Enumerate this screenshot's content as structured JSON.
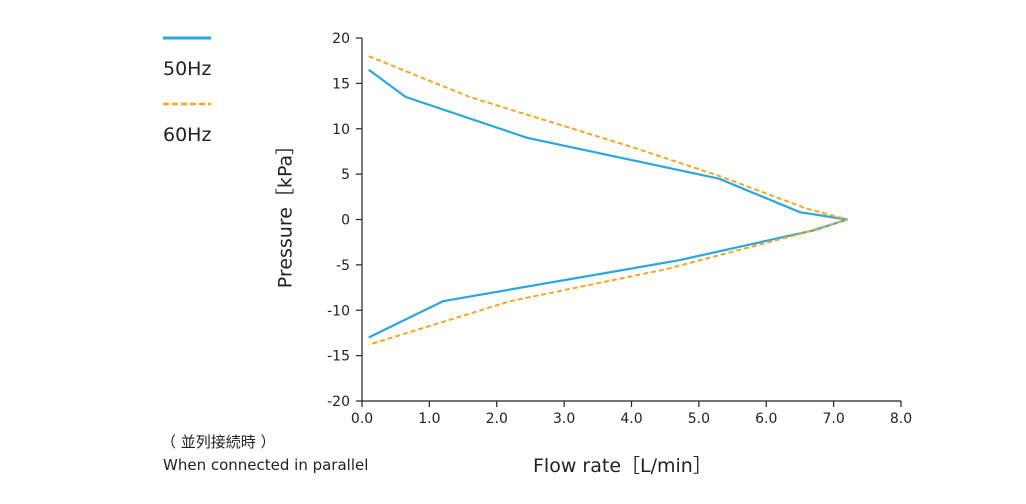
{
  "chart_data": {
    "type": "line",
    "xlabel": "Flow rate［L/min］",
    "ylabel": "Pressure［kPa］",
    "xlim": [
      0,
      8
    ],
    "ylim": [
      -20,
      20
    ],
    "x_ticks": [
      "0.0",
      "1.0",
      "2.0",
      "3.0",
      "4.0",
      "5.0",
      "6.0",
      "7.0",
      "8.0"
    ],
    "y_ticks": [
      "20",
      "15",
      "10",
      "5",
      "0",
      "-5",
      "-10",
      "-15",
      "-20"
    ],
    "x_tick_values": [
      0,
      1,
      2,
      3,
      4,
      5,
      6,
      7,
      8
    ],
    "y_tick_values": [
      20,
      15,
      10,
      5,
      0,
      -5,
      -10,
      -15,
      -20
    ],
    "series": [
      {
        "name": "50Hz",
        "color": "#2aa7e0",
        "style": "solid",
        "upper": [
          [
            0.1,
            16.5
          ],
          [
            0.65,
            13.5
          ],
          [
            2.45,
            9.0
          ],
          [
            5.3,
            4.5
          ],
          [
            6.5,
            0.8
          ],
          [
            7.2,
            0.0
          ]
        ],
        "lower": [
          [
            0.1,
            -13.0
          ],
          [
            1.2,
            -9.0
          ],
          [
            4.7,
            -4.5
          ],
          [
            6.7,
            -1.2
          ],
          [
            7.2,
            0.0
          ]
        ]
      },
      {
        "name": "60Hz",
        "color": "#f5a623",
        "style": "dashed",
        "upper": [
          [
            0.1,
            18.0
          ],
          [
            1.6,
            13.5
          ],
          [
            4.0,
            8.0
          ],
          [
            5.3,
            4.8
          ],
          [
            6.6,
            1.2
          ],
          [
            7.2,
            0.0
          ]
        ],
        "lower": [
          [
            0.1,
            -13.8
          ],
          [
            2.2,
            -9.0
          ],
          [
            4.5,
            -5.5
          ],
          [
            6.5,
            -1.6
          ],
          [
            7.2,
            0.0
          ]
        ]
      }
    ],
    "note": {
      "line1": "（ 並列接続時 ）",
      "line2": "When connected in parallel"
    }
  }
}
